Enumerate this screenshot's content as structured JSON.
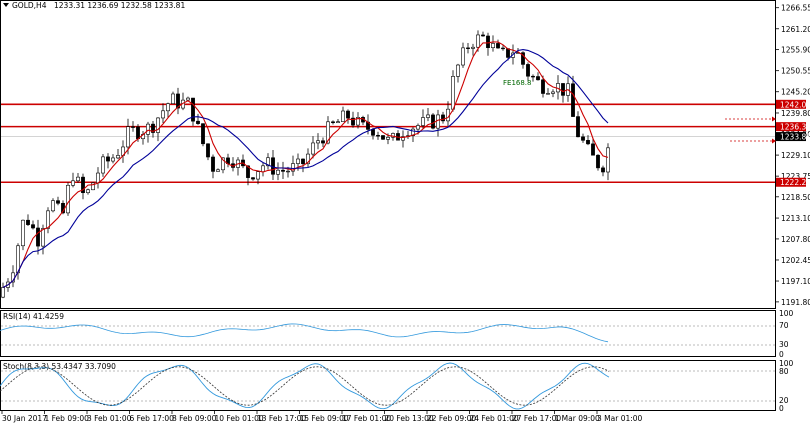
{
  "header": {
    "symbol": "GOLD,H4",
    "ohlc": "1233.31 1236.69 1232.58 1233.81"
  },
  "price_axis": {
    "ticks": [
      "1266.55",
      "1261.20",
      "1255.90",
      "1250.55",
      "1245.20",
      "1239.80",
      "1234.50",
      "1229.10",
      "1223.75",
      "1218.50",
      "1213.10",
      "1207.80",
      "1202.45",
      "1197.10",
      "1191.80"
    ],
    "min": 1190.5,
    "max": 1268.0
  },
  "price_tags": [
    {
      "label": "1242.00",
      "value": 1242.0,
      "color": "#cc0000"
    },
    {
      "label": "1236.33",
      "value": 1236.33,
      "color": "#cc0000"
    },
    {
      "label": "1233.81",
      "value": 1233.81,
      "color": "#000000"
    },
    {
      "label": "1222.20",
      "value": 1222.2,
      "color": "#cc0000"
    }
  ],
  "fib_label": "FE168.8",
  "rsi": {
    "label": "RSI(14) 41.4259",
    "levels": [
      "100",
      "70",
      "30",
      "0"
    ]
  },
  "stoch": {
    "label": "Stoch(8,3,3) 53.4347 33.7090",
    "levels": [
      "100",
      "80",
      "20",
      "0"
    ]
  },
  "time_axis": [
    "30 Jan 2017",
    "1 Feb 09:00",
    "3 Feb 01:00",
    "6 Feb 17:00",
    "8 Feb 09:00",
    "10 Feb 01:00",
    "13 Feb 17:00",
    "15 Feb 09:00",
    "17 Feb 01:00",
    "20 Feb 13:00",
    "22 Feb 09:00",
    "24 Feb 01:00",
    "27 Feb 17:00",
    "1 Mar 09:00",
    "3 Mar 01:00"
  ],
  "colors": {
    "bull": "#ffffff",
    "bear": "#000000",
    "sr_line": "#cc0000",
    "ma_fast": "#cc0000",
    "ma_slow": "#000099",
    "rsi_line": "#3399dd",
    "stoch_main": "#3399dd",
    "stoch_signal": "#333333"
  }
}
